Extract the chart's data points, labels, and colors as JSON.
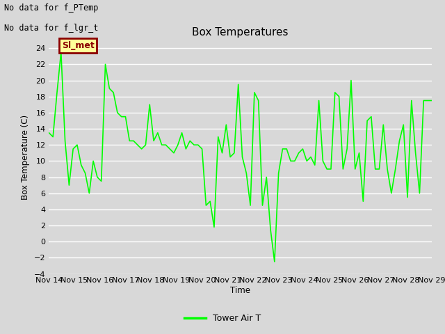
{
  "title": "Box Temperatures",
  "ylabel": "Box Temperature (C)",
  "xlabel": "Time",
  "text_no_data_1": "No data for f_PTemp",
  "text_no_data_2": "No data for f_lgr_t",
  "legend_label": "Tower Air T",
  "legend_line_color": "#00ff00",
  "box_label": "Sl_met",
  "box_bg_color": "#ffff99",
  "box_border_color": "#8b0000",
  "box_text_color": "#8b0000",
  "ylim": [
    -4,
    25
  ],
  "yticks": [
    -4,
    -2,
    0,
    2,
    4,
    6,
    8,
    10,
    12,
    14,
    16,
    18,
    20,
    22,
    24
  ],
  "bg_color": "#d8d8d8",
  "plot_bg_color": "#d8d8d8",
  "grid_color": "#ffffff",
  "line_color": "#00ff00",
  "x_tick_labels": [
    "Nov 14",
    "Nov 15",
    "Nov 16",
    "Nov 17",
    "Nov 18",
    "Nov 19",
    "Nov 20",
    "Nov 21",
    "Nov 22",
    "Nov 23",
    "Nov 24",
    "Nov 25",
    "Nov 26",
    "Nov 27",
    "Nov 28",
    "Nov 29"
  ],
  "y_values": [
    13.5,
    13.0,
    18.5,
    23.5,
    12.5,
    7.0,
    11.5,
    12.0,
    9.5,
    8.5,
    6.0,
    10.0,
    8.0,
    7.5,
    22.0,
    19.0,
    18.5,
    16.0,
    15.5,
    15.5,
    12.5,
    12.5,
    12.0,
    11.5,
    12.0,
    17.0,
    12.5,
    13.5,
    12.0,
    12.0,
    11.5,
    11.0,
    12.0,
    13.5,
    11.5,
    12.5,
    12.0,
    12.0,
    11.5,
    4.5,
    5.0,
    1.8,
    13.0,
    11.0,
    14.5,
    10.5,
    11.0,
    19.5,
    10.5,
    8.5,
    4.5,
    18.5,
    17.5,
    4.5,
    8.0,
    1.5,
    -2.5,
    8.5,
    11.5,
    11.5,
    10.0,
    10.0,
    11.0,
    11.5,
    10.0,
    10.5,
    9.5,
    17.5,
    10.0,
    9.0,
    9.0,
    18.5,
    18.0,
    9.0,
    11.5,
    20.0,
    9.0,
    11.0,
    5.0,
    15.0,
    15.5,
    9.0,
    9.0,
    14.5,
    9.0,
    6.0,
    9.0,
    12.5,
    14.5,
    5.5,
    17.5,
    11.0,
    6.0,
    17.5,
    17.5,
    17.5
  ]
}
